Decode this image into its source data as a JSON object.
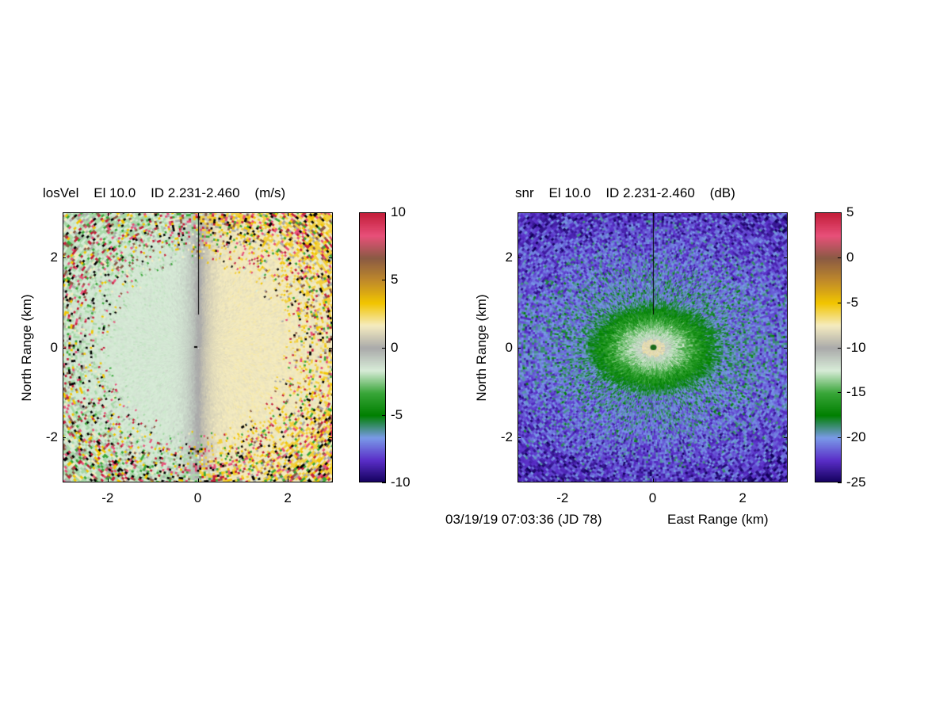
{
  "chart_data": [
    {
      "type": "heatmap",
      "title": "losVel    El 10.0    ID 2.231-2.460    (m/s)",
      "ylabel": "North Range (km)",
      "xlabel": "",
      "xlim": [
        -3,
        3
      ],
      "ylim": [
        -3,
        3
      ],
      "x_ticks": [
        -2,
        0,
        2
      ],
      "y_ticks": [
        -2,
        0,
        2
      ],
      "colorbar": {
        "ticks": [
          10,
          5,
          0,
          -5,
          -10
        ],
        "range": [
          -10,
          10
        ],
        "colors_top_to_bottom": [
          "#c41e3a",
          "#e8507a",
          "#8a5a44",
          "#c08a2a",
          "#f2c500",
          "#f5ecc0",
          "#aaaaaa",
          "#d8ecd8",
          "#3aa63a",
          "#008000",
          "#7a9ae8",
          "#5a2ec8",
          "#12005a"
        ]
      },
      "description_values": {
        "west_half": "negative (green, about -1 to -2)",
        "east_half": "positive (yellow, about +1 to +2)"
      }
    },
    {
      "type": "heatmap",
      "title": "snr    El 10.0    ID 2.231-2.460    (dB)",
      "ylabel": "North Range (km)",
      "xlabel": "East Range (km)",
      "xlim": [
        -3,
        3
      ],
      "ylim": [
        -3,
        3
      ],
      "x_ticks": [
        -2,
        0,
        2
      ],
      "y_ticks": [
        -2,
        0,
        2
      ],
      "colorbar": {
        "ticks": [
          5,
          0,
          -5,
          -10,
          -15,
          -20,
          -25
        ],
        "range": [
          -25,
          5
        ],
        "colors_top_to_bottom": [
          "#c41e3a",
          "#e8507a",
          "#8a5a44",
          "#c08a2a",
          "#f2c500",
          "#f5ecc0",
          "#aaaaaa",
          "#d8ecd8",
          "#3aa63a",
          "#008000",
          "#7a9ae8",
          "#5a2ec8",
          "#12005a"
        ]
      }
    }
  ],
  "footer": {
    "timestamp": "03/19/19 07:03:36 (JD 78)"
  }
}
